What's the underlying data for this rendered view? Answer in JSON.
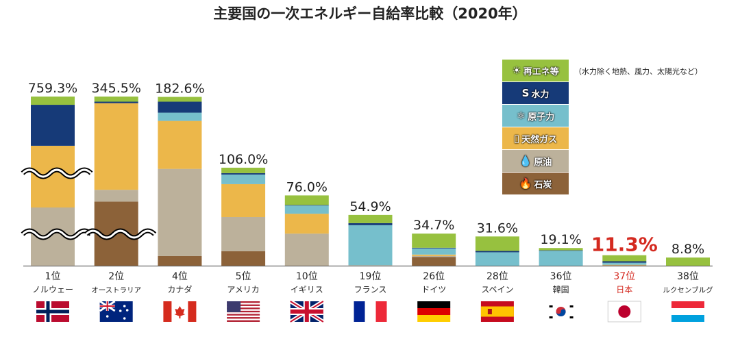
{
  "title": "主要国の一次エネルギー自給率比較（2020年）",
  "legend_note": "（水力除く地熱、風力、太陽光など）",
  "chart_data": {
    "type": "bar",
    "stacked": true,
    "title": "主要国の一次エネルギー自給率比較（2020年）",
    "unit": "%",
    "series": [
      {
        "name": "石炭",
        "key": "coal",
        "color": "#8c6239",
        "icon": "flame-icon",
        "glyph": "🔥"
      },
      {
        "name": "原油",
        "key": "oil",
        "color": "#bcb19b",
        "icon": "oil-drop-icon",
        "glyph": "💧"
      },
      {
        "name": "天然ガス",
        "key": "gas",
        "color": "#ecb74a",
        "icon": "gas-tank-icon",
        "glyph": "▯"
      },
      {
        "name": "原子力",
        "key": "nuclear",
        "color": "#76bfcc",
        "icon": "atom-icon",
        "glyph": "⚛"
      },
      {
        "name": "水力",
        "key": "hydro",
        "color": "#163a78",
        "icon": "water-wave-icon",
        "glyph": "S"
      },
      {
        "name": "再エネ等",
        "key": "renew",
        "color": "#97c13f",
        "icon": "sun-icon",
        "glyph": "☀"
      }
    ],
    "countries": [
      {
        "rank": "1位",
        "name": "ノルウェー",
        "total": "759.3%",
        "flag": "norway",
        "broken": true,
        "values": {
          "coal": 0.3,
          "oil": 261,
          "gas": 277,
          "nuclear": 0,
          "hydro": 184,
          "renew": 37
        }
      },
      {
        "rank": "2位",
        "name": "オーストラリア",
        "total": "345.5%",
        "flag": "australia",
        "broken": true,
        "values": {
          "coal": 131,
          "oil": 24,
          "gas": 177,
          "nuclear": 0,
          "hydro": 3,
          "renew": 10.5
        }
      },
      {
        "rank": "4位",
        "name": "カナダ",
        "total": "182.6%",
        "flag": "canada",
        "values": {
          "coal": 10.4,
          "oil": 94.3,
          "gas": 51.9,
          "nuclear": 8.9,
          "hydro": 11.9,
          "renew": 5.2
        }
      },
      {
        "rank": "5位",
        "name": "アメリカ",
        "total": "106.0%",
        "flag": "usa",
        "values": {
          "coal": 15.6,
          "oil": 37,
          "gas": 35.6,
          "nuclear": 10.4,
          "hydro": 1.5,
          "renew": 5.9
        }
      },
      {
        "rank": "10位",
        "name": "イギリス",
        "total": "76.0%",
        "flag": "uk",
        "values": {
          "coal": 0.2,
          "oil": 34.5,
          "gas": 21.5,
          "nuclear": 8.9,
          "hydro": 0.5,
          "renew": 10.4
        }
      },
      {
        "rank": "19位",
        "name": "フランス",
        "total": "54.9%",
        "flag": "france",
        "values": {
          "coal": 0,
          "oil": 0.5,
          "gas": 0,
          "nuclear": 43.3,
          "hydro": 2.2,
          "renew": 8.9
        }
      },
      {
        "rank": "26位",
        "name": "ドイツ",
        "total": "34.7%",
        "flag": "germany",
        "values": {
          "coal": 9.5,
          "oil": 1,
          "gas": 1.5,
          "nuclear": 6.7,
          "hydro": 0.7,
          "renew": 15.3
        }
      },
      {
        "rank": "28位",
        "name": "スペイン",
        "total": "31.6%",
        "flag": "spain",
        "values": {
          "coal": 0,
          "oil": 0,
          "gas": 0,
          "nuclear": 14.5,
          "hydro": 1.5,
          "renew": 15.6
        }
      },
      {
        "rank": "36位",
        "name": "韓国",
        "total": "19.1%",
        "flag": "korea",
        "values": {
          "coal": 0,
          "oil": 0,
          "gas": 0,
          "nuclear": 16.1,
          "hydro": 0.5,
          "renew": 2.5
        }
      },
      {
        "rank": "37位",
        "name": "日本",
        "total": "11.3%",
        "flag": "japan",
        "highlight": true,
        "values": {
          "coal": 0.3,
          "oil": 0.2,
          "gas": 0.5,
          "nuclear": 2.2,
          "hydro": 1.6,
          "renew": 6.5
        }
      },
      {
        "rank": "38位",
        "name": "ルクセンブルグ",
        "total": "8.8%",
        "flag": "luxembourg",
        "values": {
          "coal": 0,
          "oil": 0,
          "gas": 0,
          "nuclear": 0,
          "hydro": 0,
          "renew": 8.8
        }
      }
    ],
    "highlight_color": "#d42a20"
  }
}
